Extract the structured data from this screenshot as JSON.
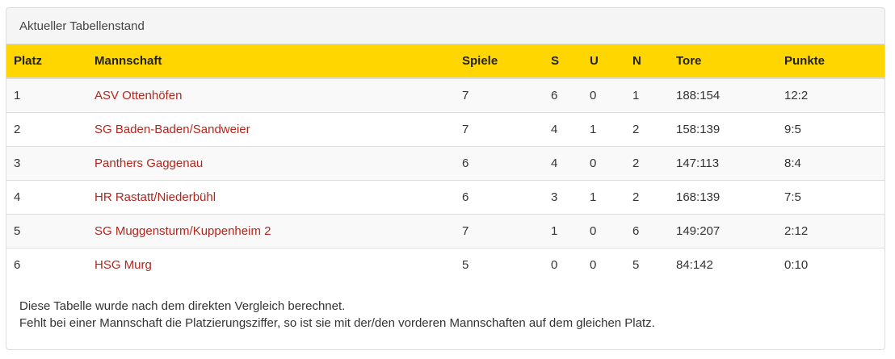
{
  "panel": {
    "title": "Aktueller Tabellenstand"
  },
  "table": {
    "headers": {
      "platz": "Platz",
      "mannschaft": "Mannschaft",
      "spiele": "Spiele",
      "s": "S",
      "u": "U",
      "n": "N",
      "tore": "Tore",
      "punkte": "Punkte"
    },
    "rows": [
      {
        "platz": "1",
        "mannschaft": "ASV Ottenhöfen",
        "spiele": "7",
        "s": "6",
        "u": "0",
        "n": "1",
        "tore": "188:154",
        "punkte": "12:2"
      },
      {
        "platz": "2",
        "mannschaft": "SG Baden-Baden/Sandweier",
        "spiele": "7",
        "s": "4",
        "u": "1",
        "n": "2",
        "tore": "158:139",
        "punkte": "9:5"
      },
      {
        "platz": "3",
        "mannschaft": "Panthers Gaggenau",
        "spiele": "6",
        "s": "4",
        "u": "0",
        "n": "2",
        "tore": "147:113",
        "punkte": "8:4"
      },
      {
        "platz": "4",
        "mannschaft": "HR Rastatt/Niederbühl",
        "spiele": "6",
        "s": "3",
        "u": "1",
        "n": "2",
        "tore": "168:139",
        "punkte": "7:5"
      },
      {
        "platz": "5",
        "mannschaft": "SG Muggensturm/Kuppenheim 2",
        "spiele": "7",
        "s": "1",
        "u": "0",
        "n": "6",
        "tore": "149:207",
        "punkte": "2:12"
      },
      {
        "platz": "6",
        "mannschaft": "HSG Murg",
        "spiele": "5",
        "s": "0",
        "u": "0",
        "n": "5",
        "tore": "84:142",
        "punkte": "0:10"
      }
    ]
  },
  "footer": {
    "line1": "Diese Tabelle wurde nach dem direkten Vergleich berechnet.",
    "line2": "Fehlt bei einer Mannschaft die Platzierungsziffer, so ist sie mit der/den vorderen Mannschaften auf dem gleichen Platz."
  },
  "colors": {
    "header_bg": "#ffd600",
    "link": "#b3261e",
    "stripe": "#f9f9f9"
  }
}
